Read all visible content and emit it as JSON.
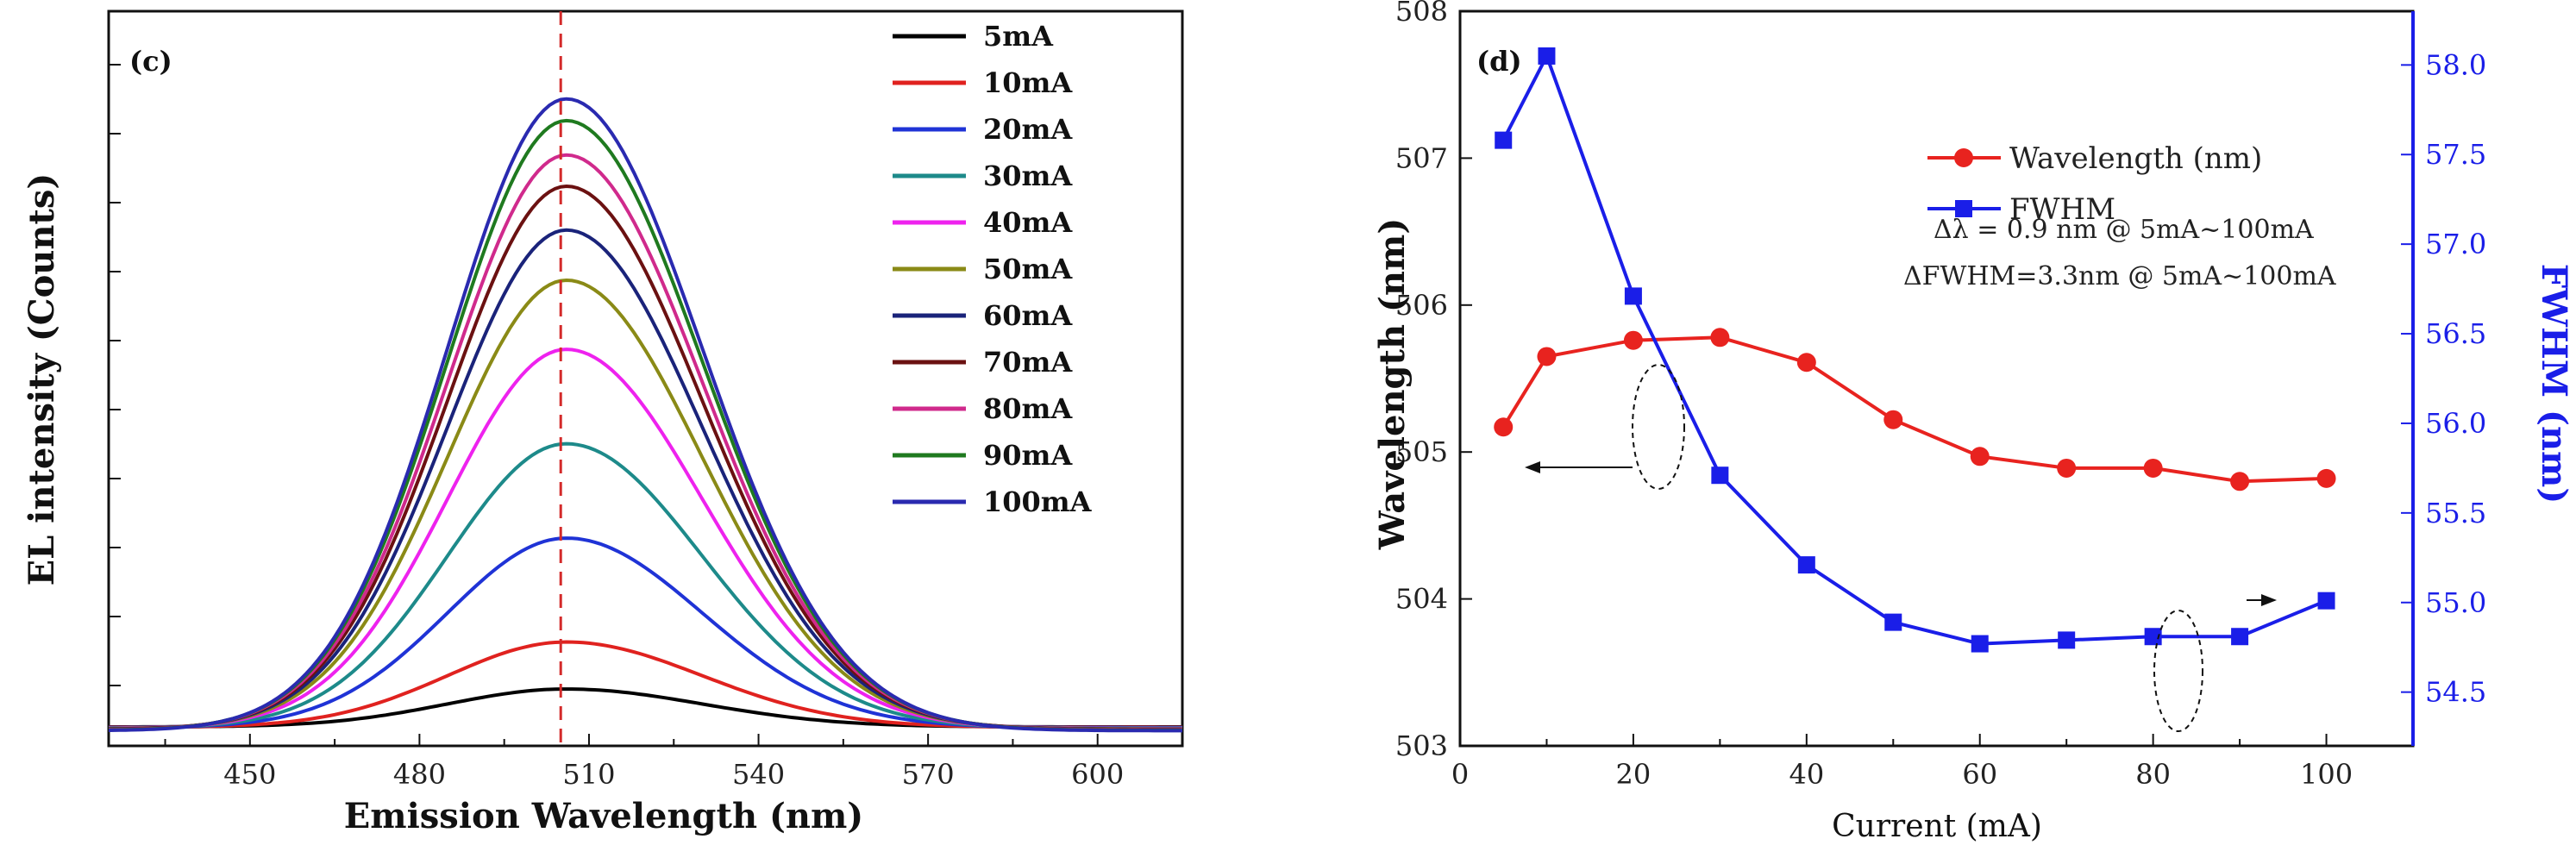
{
  "chart_data": [
    {
      "type": "line",
      "panel_label": "(c)",
      "title": "",
      "xlabel": "Emission Wavelength (nm)",
      "ylabel": "EL intensity (Counts)",
      "xlim": [
        425,
        615
      ],
      "ylim": [
        0,
        10
      ],
      "xticks": [
        450,
        480,
        510,
        540,
        570,
        600
      ],
      "y_tick_labels_shown": false,
      "reference_line": {
        "x": 505,
        "style": "dashed",
        "color": "#d42a2a"
      },
      "legend_position": "top-right",
      "peak_shape": {
        "center_nm": 506,
        "sigma_left_nm": 21,
        "sigma_right_nm": 24,
        "baseline": 0.3
      },
      "series": [
        {
          "name": "5mA",
          "color": "#000000",
          "peak": 0.6
        },
        {
          "name": "10mA",
          "color": "#e0221f",
          "peak": 1.35
        },
        {
          "name": "20mA",
          "color": "#1f33d6",
          "peak": 3.0
        },
        {
          "name": "30mA",
          "color": "#1d8a8a",
          "peak": 4.5
        },
        {
          "name": "40mA",
          "color": "#ee22ee",
          "peak": 6.0
        },
        {
          "name": "50mA",
          "color": "#8a8a16",
          "peak": 7.1
        },
        {
          "name": "60mA",
          "color": "#1a237a",
          "peak": 7.9
        },
        {
          "name": "70mA",
          "color": "#6b1111",
          "peak": 8.6
        },
        {
          "name": "80mA",
          "color": "#d02a8c",
          "peak": 9.1
        },
        {
          "name": "90mA",
          "color": "#1f7a1f",
          "peak": 9.65
        },
        {
          "name": "100mA",
          "color": "#2a2ab0",
          "peak": 10.0
        }
      ]
    },
    {
      "type": "line",
      "panel_label": "(d)",
      "title": "",
      "xlabel": "Current (mA)",
      "ylabel": "Wavelength (nm)",
      "y2label": "FWHM (nm)",
      "xlim": [
        0,
        110
      ],
      "ylim": [
        503,
        508
      ],
      "y2lim": [
        54.2,
        58.3
      ],
      "xticks": [
        0,
        20,
        40,
        60,
        80,
        100
      ],
      "yticks": [
        503,
        504,
        505,
        506,
        507,
        508
      ],
      "y2ticks": [
        "54.5",
        "55.0",
        "55.5",
        "56.0",
        "56.5",
        "57.0",
        "57.5",
        "58.0"
      ],
      "legend_position": "top-right",
      "x": [
        5,
        10,
        20,
        30,
        40,
        50,
        60,
        70,
        80,
        90,
        100
      ],
      "series": [
        {
          "name": "Wavelength (nm)",
          "axis": "left",
          "marker": "circle",
          "color": "#e8231f",
          "values": [
            505.17,
            505.65,
            505.76,
            505.78,
            505.61,
            505.22,
            504.97,
            504.89,
            504.89,
            504.8,
            504.82
          ]
        },
        {
          "name": "FWHM",
          "axis": "right",
          "marker": "square",
          "color": "#1a1ee8",
          "values": [
            57.58,
            58.05,
            56.71,
            55.71,
            55.21,
            54.89,
            54.77,
            54.79,
            54.81,
            54.81,
            55.01
          ]
        }
      ],
      "annotations": [
        "Δλ = 0.9 nm @ 5mA~100mA",
        "ΔFWHM=3.3nm @ 5mA~100mA"
      ]
    }
  ]
}
